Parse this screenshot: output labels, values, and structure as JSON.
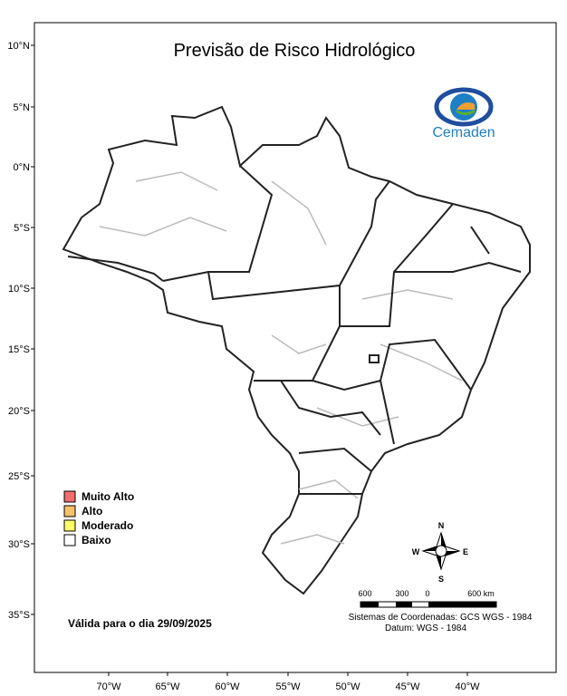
{
  "title": "Previsão de Risco Hidrológico",
  "logo": "Cemaden",
  "latitude_labels": [
    "10°N",
    "5°N",
    "0°N",
    "5°S",
    "10°S",
    "15°S",
    "20°S",
    "25°S",
    "30°S",
    "35°S"
  ],
  "longitude_labels": [
    "70°W",
    "65°W",
    "60°W",
    "55°W",
    "50°W",
    "45°W",
    "40°W"
  ],
  "legend": [
    {
      "label": "Muito Alto",
      "color": "#f26d6d"
    },
    {
      "label": "Alto",
      "color": "#f7c06a"
    },
    {
      "label": "Moderado",
      "color": "#ffff66"
    },
    {
      "label": "Baixo",
      "color": "#ffffff"
    }
  ],
  "validity": "Válida para o dia 29/09/2025",
  "compass": {
    "north": "N",
    "south": "S",
    "east": "E",
    "west": "W"
  },
  "scale_bar": {
    "labels": [
      "600",
      "300",
      "0",
      "600 km"
    ]
  },
  "coordinate_system": "Sistemas de Coordenadas: GCS WGS - 1984",
  "datum": "Datum: WGS - 1984"
}
